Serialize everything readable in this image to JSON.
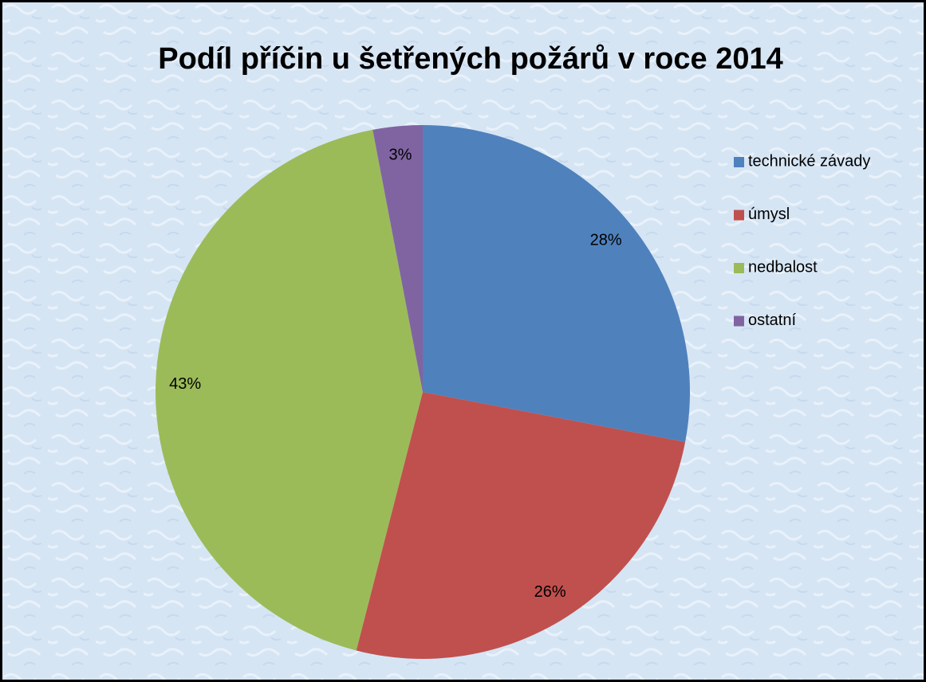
{
  "chart_data": {
    "type": "pie",
    "title": "Podíl příčin u šetřených požárů v roce 2014",
    "categories": [
      "technické závady",
      "úmysl",
      "nedbalost",
      "ostatní"
    ],
    "values": [
      28,
      26,
      43,
      3
    ],
    "value_labels": [
      "28%",
      "26%",
      "43%",
      "3%"
    ],
    "colors": [
      "#4f81bd",
      "#c0504d",
      "#9bbb59",
      "#8064a2"
    ],
    "legend": "right"
  }
}
